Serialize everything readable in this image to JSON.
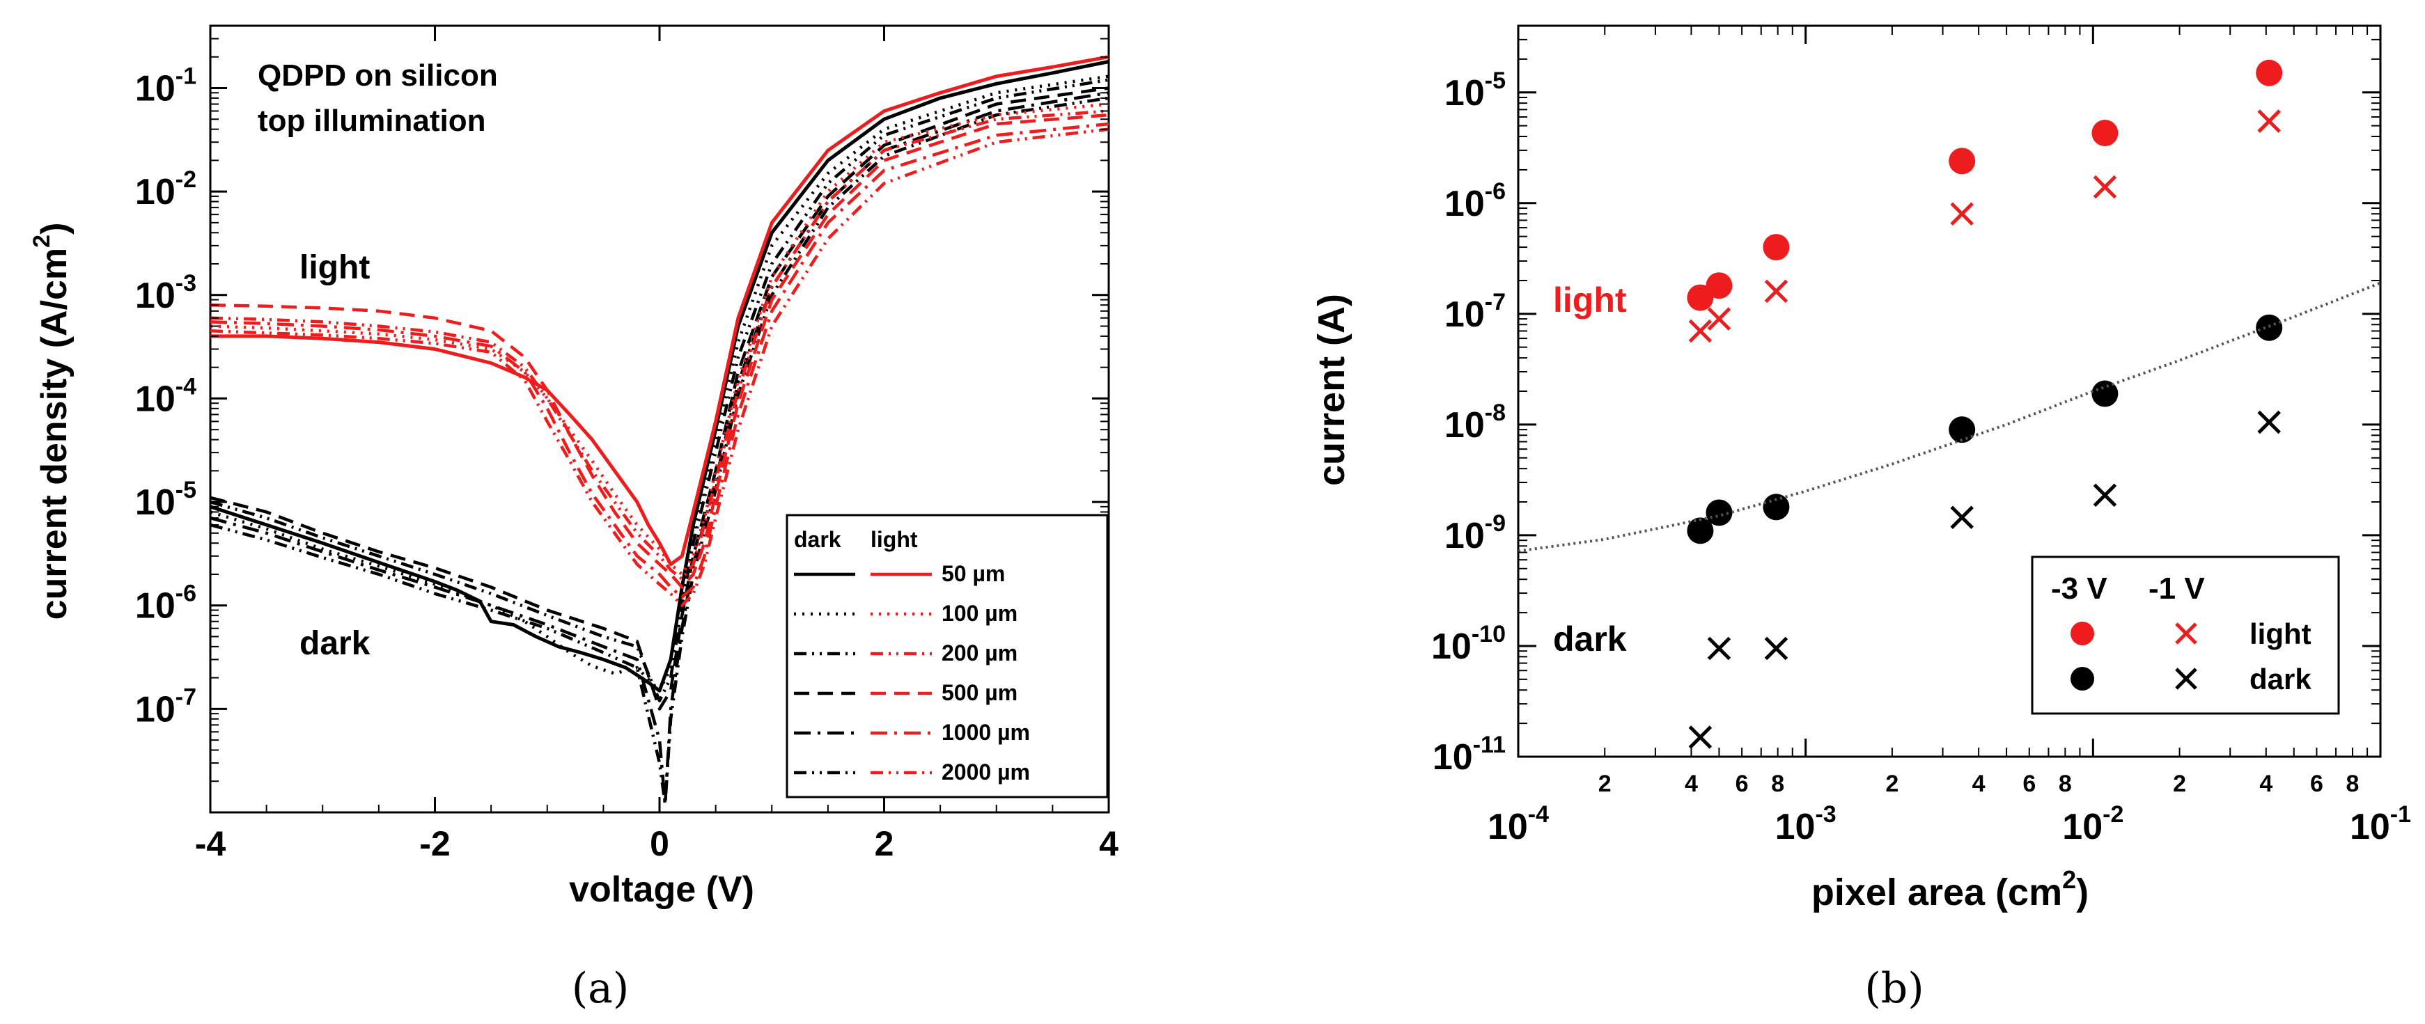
{
  "figure": {
    "panels": [
      {
        "caption": "(a)"
      },
      {
        "caption": "(b)"
      }
    ]
  },
  "chart_data": [
    {
      "type": "line",
      "panel": "a",
      "title": "QDPD on silicon",
      "subtitle": "top illumination",
      "xlabel": "voltage (V)",
      "ylabel": "current density (A/cm",
      "ylabel_sup": "2",
      "ylabel_end": ")",
      "xscale": "linear",
      "yscale": "log",
      "xlim": [
        -4,
        4
      ],
      "ylim": [
        1e-08,
        0.4
      ],
      "xticks": [
        -4,
        -2,
        0,
        2,
        4
      ],
      "xtick_labels": [
        "-4",
        "-2",
        "0",
        "2",
        "4"
      ],
      "yticks": [
        1e-07,
        1e-06,
        1e-05,
        0.0001,
        0.001,
        0.01,
        0.1
      ],
      "ytick_labels": [
        {
          "base": "10",
          "exp": "-7"
        },
        {
          "base": "10",
          "exp": "-6"
        },
        {
          "base": "10",
          "exp": "-5"
        },
        {
          "base": "10",
          "exp": "-4"
        },
        {
          "base": "10",
          "exp": "-3"
        },
        {
          "base": "10",
          "exp": "-2"
        },
        {
          "base": "10",
          "exp": "-1"
        }
      ],
      "annotations": [
        {
          "text": "light",
          "x": -3.2,
          "y": 0.002
        },
        {
          "text": "dark",
          "x": -3.2,
          "y": 1.1e-06
        }
      ],
      "legend": {
        "placement": "lower-right",
        "header": [
          "dark",
          "light"
        ],
        "entries": [
          "50 µm",
          "100 µm",
          "200 µm",
          "500 µm",
          "1000 µm",
          "2000 µm"
        ]
      },
      "colors": {
        "dark": "#000000",
        "light": "#ee1c1c"
      },
      "series": [
        {
          "name": "dark 50 µm",
          "group": "dark",
          "dash": "solid",
          "x": [
            -4,
            -3.5,
            -3,
            -2.5,
            -2,
            -1.8,
            -1.6,
            -1.5,
            -1.3,
            -1.1,
            -0.9,
            -0.7,
            -0.5,
            -0.3,
            -0.1,
            0,
            0.1,
            0.2,
            0.3,
            0.5,
            0.7,
            1,
            1.5,
            2,
            2.5,
            3,
            3.5,
            4
          ],
          "y": [
            9e-06,
            6e-06,
            4e-06,
            2.6e-06,
            1.7e-06,
            1.4e-06,
            1.1e-06,
            7e-07,
            6.5e-07,
            5e-07,
            4e-07,
            3.5e-07,
            3e-07,
            2.5e-07,
            1.8e-07,
            1.5e-07,
            3e-07,
            1.5e-06,
            6e-06,
            5e-05,
            0.0005,
            0.004,
            0.02,
            0.05,
            0.08,
            0.11,
            0.14,
            0.18
          ]
        },
        {
          "name": "dark 100 µm",
          "group": "dark",
          "dash": "dot",
          "x": [
            -4,
            -3.5,
            -3,
            -2.5,
            -2,
            -1.5,
            -1.2,
            -1,
            -0.8,
            -0.6,
            -0.4,
            -0.2,
            0,
            0.1,
            0.2,
            0.3,
            0.5,
            0.7,
            1,
            1.5,
            2,
            3,
            4
          ],
          "y": [
            8e-06,
            5.5e-06,
            3.5e-06,
            2.4e-06,
            1.6e-06,
            1e-06,
            7e-07,
            5e-07,
            3.5e-07,
            2.6e-07,
            2.2e-07,
            2.5e-07,
            1.5e-07,
            2.5e-07,
            1.2e-06,
            5e-06,
            4e-05,
            0.00035,
            0.003,
            0.015,
            0.04,
            0.09,
            0.13
          ]
        },
        {
          "name": "dark 200 µm",
          "group": "dark",
          "dash": "dashdotdot",
          "x": [
            -4,
            -3.5,
            -3,
            -2.5,
            -2,
            -1.5,
            -1,
            -0.5,
            -0.2,
            0,
            0.1,
            0.2,
            0.3,
            0.5,
            0.7,
            1,
            1.5,
            2,
            3,
            4
          ],
          "y": [
            1e-05,
            7e-06,
            4.5e-06,
            3e-06,
            2e-06,
            1.3e-06,
            8e-07,
            5e-07,
            4e-07,
            1.2e-07,
            2e-07,
            1e-06,
            4e-06,
            3e-05,
            0.00025,
            0.002,
            0.012,
            0.035,
            0.08,
            0.12
          ]
        },
        {
          "name": "dark 500 µm",
          "group": "dark",
          "dash": "dash",
          "x": [
            -4,
            -3.5,
            -3,
            -2.5,
            -2,
            -1.5,
            -1,
            -0.5,
            -0.2,
            0,
            0.1,
            0.2,
            0.3,
            0.5,
            0.7,
            1,
            1.5,
            2,
            3,
            4
          ],
          "y": [
            1.1e-05,
            8e-06,
            5e-06,
            3.3e-06,
            2.3e-06,
            1.5e-06,
            9e-07,
            6e-07,
            4.5e-07,
            1e-07,
            1.5e-07,
            8e-07,
            3e-06,
            2e-05,
            0.00018,
            0.0015,
            0.009,
            0.028,
            0.07,
            0.1
          ]
        },
        {
          "name": "dark 1000 µm",
          "group": "dark",
          "dash": "dashdot",
          "x": [
            -4,
            -3.5,
            -3,
            -2.5,
            -2,
            -1.5,
            -1,
            -0.5,
            -0.2,
            0,
            0.05,
            0.1,
            0.2,
            0.3,
            0.5,
            0.7,
            1,
            1.5,
            2,
            3,
            4
          ],
          "y": [
            7e-06,
            5e-06,
            3.3e-06,
            2.2e-06,
            1.5e-06,
            1e-06,
            6.5e-07,
            4e-07,
            3e-07,
            5e-08,
            1.2e-08,
            1e-07,
            6e-07,
            2.5e-06,
            1.6e-05,
            0.00014,
            0.0012,
            0.008,
            0.025,
            0.06,
            0.09
          ]
        },
        {
          "name": "dark 2000 µm",
          "group": "dark",
          "dash": "dashdotdot",
          "x": [
            -4,
            -3.5,
            -3,
            -2.5,
            -2,
            -1.5,
            -1,
            -0.5,
            -0.2,
            0,
            0.05,
            0.1,
            0.2,
            0.3,
            0.5,
            0.7,
            1,
            1.5,
            2,
            3,
            4
          ],
          "y": [
            6e-06,
            4.3e-06,
            2.9e-06,
            2e-06,
            1.3e-06,
            9e-07,
            6e-07,
            3.5e-07,
            2.5e-07,
            3e-08,
            1.2e-08,
            8e-08,
            5e-07,
            2e-06,
            1.3e-05,
            0.00011,
            0.001,
            0.007,
            0.022,
            0.055,
            0.08
          ]
        },
        {
          "name": "light 50 µm",
          "group": "light",
          "dash": "solid",
          "x": [
            -4,
            -3.5,
            -3,
            -2.5,
            -2,
            -1.5,
            -1.2,
            -1,
            -0.8,
            -0.6,
            -0.4,
            -0.2,
            -0.1,
            0,
            0.1,
            0.2,
            0.3,
            0.5,
            0.7,
            1,
            1.5,
            2,
            2.5,
            3,
            3.5,
            4
          ],
          "y": [
            0.0004,
            0.0004,
            0.00038,
            0.00035,
            0.0003,
            0.00022,
            0.00016,
            0.00012,
            7e-05,
            4e-05,
            2e-05,
            1e-05,
            6e-06,
            4e-06,
            2.5e-06,
            3e-06,
            8e-06,
            6e-05,
            0.0006,
            0.005,
            0.025,
            0.06,
            0.09,
            0.13,
            0.16,
            0.2
          ]
        },
        {
          "name": "light 100 µm",
          "group": "light",
          "dash": "dot",
          "x": [
            -4,
            -3.5,
            -3,
            -2.5,
            -2,
            -1.5,
            -1.2,
            -1,
            -0.8,
            -0.6,
            -0.4,
            -0.2,
            0,
            0.1,
            0.2,
            0.3,
            0.4,
            0.5,
            0.7,
            1,
            1.5,
            2,
            3,
            4
          ],
          "y": [
            0.0005,
            0.00048,
            0.00045,
            0.00042,
            0.00037,
            0.0003,
            0.00018,
            0.0001,
            5e-05,
            2.5e-05,
            1.2e-05,
            6e-06,
            3.5e-06,
            2.5e-06,
            2e-06,
            3e-06,
            7e-06,
            2e-05,
            0.00015,
            0.0015,
            0.01,
            0.03,
            0.055,
            0.07
          ]
        },
        {
          "name": "light 200 µm",
          "group": "light",
          "dash": "dashdotdot",
          "x": [
            -4,
            -3.5,
            -3,
            -2.5,
            -2,
            -1.5,
            -1.2,
            -1,
            -0.8,
            -0.6,
            -0.4,
            -0.2,
            0,
            0.1,
            0.2,
            0.3,
            0.4,
            0.5,
            0.7,
            1,
            1.5,
            2,
            3,
            4
          ],
          "y": [
            0.0006,
            0.00058,
            0.00055,
            0.0005,
            0.00044,
            0.00035,
            0.0002,
            0.0001,
            4.5e-05,
            2e-05,
            1e-05,
            5e-06,
            3e-06,
            2.2e-06,
            1.8e-06,
            2.5e-06,
            6e-06,
            1.6e-05,
            0.00012,
            0.0012,
            0.008,
            0.025,
            0.05,
            0.06
          ]
        },
        {
          "name": "light 500 µm",
          "group": "light",
          "dash": "dash",
          "x": [
            -4,
            -3.5,
            -3,
            -2.5,
            -2,
            -1.5,
            -1.2,
            -1,
            -0.8,
            -0.6,
            -0.4,
            -0.2,
            0,
            0.1,
            0.2,
            0.3,
            0.4,
            0.5,
            0.7,
            1,
            1.5,
            2,
            3,
            4
          ],
          "y": [
            0.0008,
            0.00078,
            0.00075,
            0.0007,
            0.0006,
            0.00045,
            0.00025,
            0.00012,
            4.5e-05,
            1.8e-05,
            8e-06,
            4e-06,
            2.5e-06,
            2e-06,
            1.5e-06,
            2e-06,
            4e-06,
            1.2e-05,
            9e-05,
            0.0009,
            0.006,
            0.02,
            0.045,
            0.055
          ]
        },
        {
          "name": "light 1000 µm",
          "group": "light",
          "dash": "dashdot",
          "x": [
            -4,
            -3.5,
            -3,
            -2.5,
            -2,
            -1.5,
            -1.2,
            -1,
            -0.8,
            -0.6,
            -0.4,
            -0.2,
            0,
            0.1,
            0.2,
            0.3,
            0.4,
            0.5,
            0.7,
            1,
            1.5,
            2,
            3,
            4
          ],
          "y": [
            0.00055,
            0.00053,
            0.0005,
            0.00046,
            0.0004,
            0.00032,
            0.00018,
            8e-05,
            3e-05,
            1.2e-05,
            6e-06,
            3e-06,
            2e-06,
            1.5e-06,
            1.2e-06,
            1.5e-06,
            3e-06,
            9e-06,
            7e-05,
            0.0007,
            0.005,
            0.016,
            0.035,
            0.045
          ]
        },
        {
          "name": "light 2000 µm",
          "group": "light",
          "dash": "dashdotdot",
          "x": [
            -4,
            -3.5,
            -3,
            -2.5,
            -2,
            -1.5,
            -1.2,
            -1,
            -0.8,
            -0.6,
            -0.4,
            -0.2,
            0,
            0.1,
            0.2,
            0.3,
            0.4,
            0.5,
            0.7,
            1,
            1.5,
            2,
            3,
            4
          ],
          "y": [
            0.00045,
            0.00043,
            0.00041,
            0.00038,
            0.00034,
            0.00028,
            0.00015,
            6e-05,
            2.5e-05,
            1e-05,
            5e-06,
            2.5e-06,
            1.6e-06,
            1.3e-06,
            1e-06,
            1.3e-06,
            2.5e-06,
            7e-06,
            5e-05,
            0.0005,
            0.0035,
            0.012,
            0.03,
            0.04
          ]
        }
      ]
    },
    {
      "type": "scatter",
      "panel": "b",
      "xlabel": "pixel area (cm",
      "xlabel_sup": "2",
      "xlabel_end": ")",
      "ylabel": "current (A)",
      "xscale": "log",
      "yscale": "log",
      "xlim": [
        0.0001,
        0.1
      ],
      "ylim": [
        1e-11,
        4e-05
      ],
      "xticks_major": [
        0.0001,
        0.001,
        0.01,
        0.1
      ],
      "xtick_labels": [
        {
          "base": "10",
          "exp": "-4"
        },
        {
          "base": "10",
          "exp": "-3"
        },
        {
          "base": "10",
          "exp": "-2"
        },
        {
          "base": "10",
          "exp": "-1"
        }
      ],
      "xticks_minor_labels": [
        "2",
        "4",
        "6",
        "8",
        "2",
        "4",
        "6",
        "8",
        "2",
        "4",
        "6",
        "8"
      ],
      "xticks_minor": [
        0.0002,
        0.0004,
        0.0006,
        0.0008,
        0.002,
        0.004,
        0.006,
        0.008,
        0.02,
        0.04,
        0.06,
        0.08
      ],
      "yticks": [
        1e-11,
        1e-10,
        1e-09,
        1e-08,
        1e-07,
        1e-06,
        1e-05
      ],
      "ytick_labels": [
        {
          "base": "10",
          "exp": "-11"
        },
        {
          "base": "10",
          "exp": "-10"
        },
        {
          "base": "10",
          "exp": "-9"
        },
        {
          "base": "10",
          "exp": "-8"
        },
        {
          "base": "10",
          "exp": "-7"
        },
        {
          "base": "10",
          "exp": "-6"
        },
        {
          "base": "10",
          "exp": "-5"
        }
      ],
      "annotations": [
        {
          "text": "light",
          "x": 0.00018,
          "y": 8e-08,
          "color": "#ee1c1c"
        },
        {
          "text": "dark",
          "x": 0.00018,
          "y": 8e-11,
          "color": "#000000"
        }
      ],
      "legend": {
        "placement": "lower-right",
        "header": [
          "-3 V",
          "-1 V"
        ],
        "rows": [
          "light",
          "dark"
        ]
      },
      "colors": {
        "light": "#ee1c1c",
        "dark": "#000000",
        "fit": "#555555"
      },
      "series": [
        {
          "name": "light -3 V",
          "marker": "circle",
          "color": "#ee1c1c",
          "x": [
            0.00043,
            0.0005,
            0.00079,
            0.0035,
            0.011,
            0.041
          ],
          "y": [
            1.4e-07,
            1.8e-07,
            4e-07,
            2.4e-06,
            4.3e-06,
            1.5e-05
          ]
        },
        {
          "name": "light -1 V",
          "marker": "x",
          "color": "#ee1c1c",
          "x": [
            0.00043,
            0.0005,
            0.00079,
            0.0035,
            0.011,
            0.041
          ],
          "y": [
            7e-08,
            9e-08,
            1.6e-07,
            8e-07,
            1.4e-06,
            5.5e-06
          ]
        },
        {
          "name": "dark -3 V",
          "marker": "circle",
          "color": "#000000",
          "x": [
            0.00043,
            0.0005,
            0.00079,
            0.0035,
            0.011,
            0.041
          ],
          "y": [
            1.1e-09,
            1.6e-09,
            1.8e-09,
            9e-09,
            1.9e-08,
            7.5e-08
          ]
        },
        {
          "name": "dark -1 V",
          "marker": "x",
          "color": "#000000",
          "x": [
            0.00043,
            0.0005,
            0.00079,
            0.0035,
            0.011,
            0.041
          ],
          "y": [
            1.5e-11,
            9.5e-11,
            9.5e-11,
            1.45e-09,
            2.3e-09,
            1.05e-08
          ]
        },
        {
          "name": "dark -3 V fit",
          "marker": "none",
          "line": "dotted",
          "color": "#555555",
          "x": [
            0.0001,
            0.0002,
            0.0005,
            0.001,
            0.002,
            0.005,
            0.01,
            0.02,
            0.05,
            0.1
          ],
          "y": [
            7.2e-10,
            9.2e-10,
            1.5e-09,
            2.5e-09,
            4.4e-09,
            1e-08,
            2e-08,
            3.8e-08,
            9.4e-08,
            1.9e-07
          ]
        }
      ]
    }
  ]
}
